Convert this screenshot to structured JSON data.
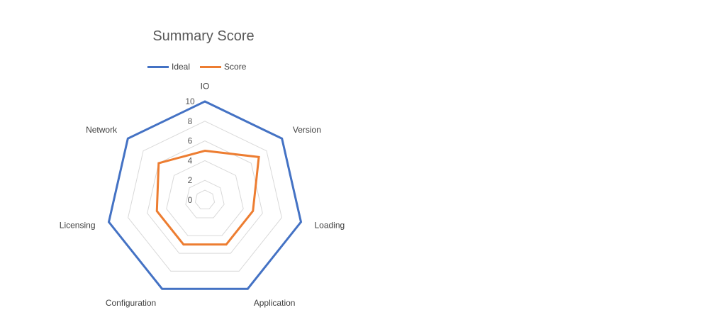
{
  "chart_data": {
    "type": "radar",
    "title": "Summary Score",
    "categories": [
      "IO",
      "Version",
      "Loading",
      "Application",
      "Configuration",
      "Licensing",
      "Network"
    ],
    "radial_ticks": [
      "0",
      "2",
      "4",
      "6",
      "8",
      "10"
    ],
    "rmin": 0,
    "rmax": 10,
    "legend_position": "top",
    "series": [
      {
        "name": "Ideal",
        "values": [
          10,
          10,
          10,
          10,
          10,
          10,
          10
        ],
        "color": "#4472C4"
      },
      {
        "name": "Score",
        "values": [
          5,
          7,
          5,
          5,
          5,
          5,
          6
        ],
        "color": "#ED7D31"
      }
    ],
    "gridline_color": "#d9d9d9"
  }
}
